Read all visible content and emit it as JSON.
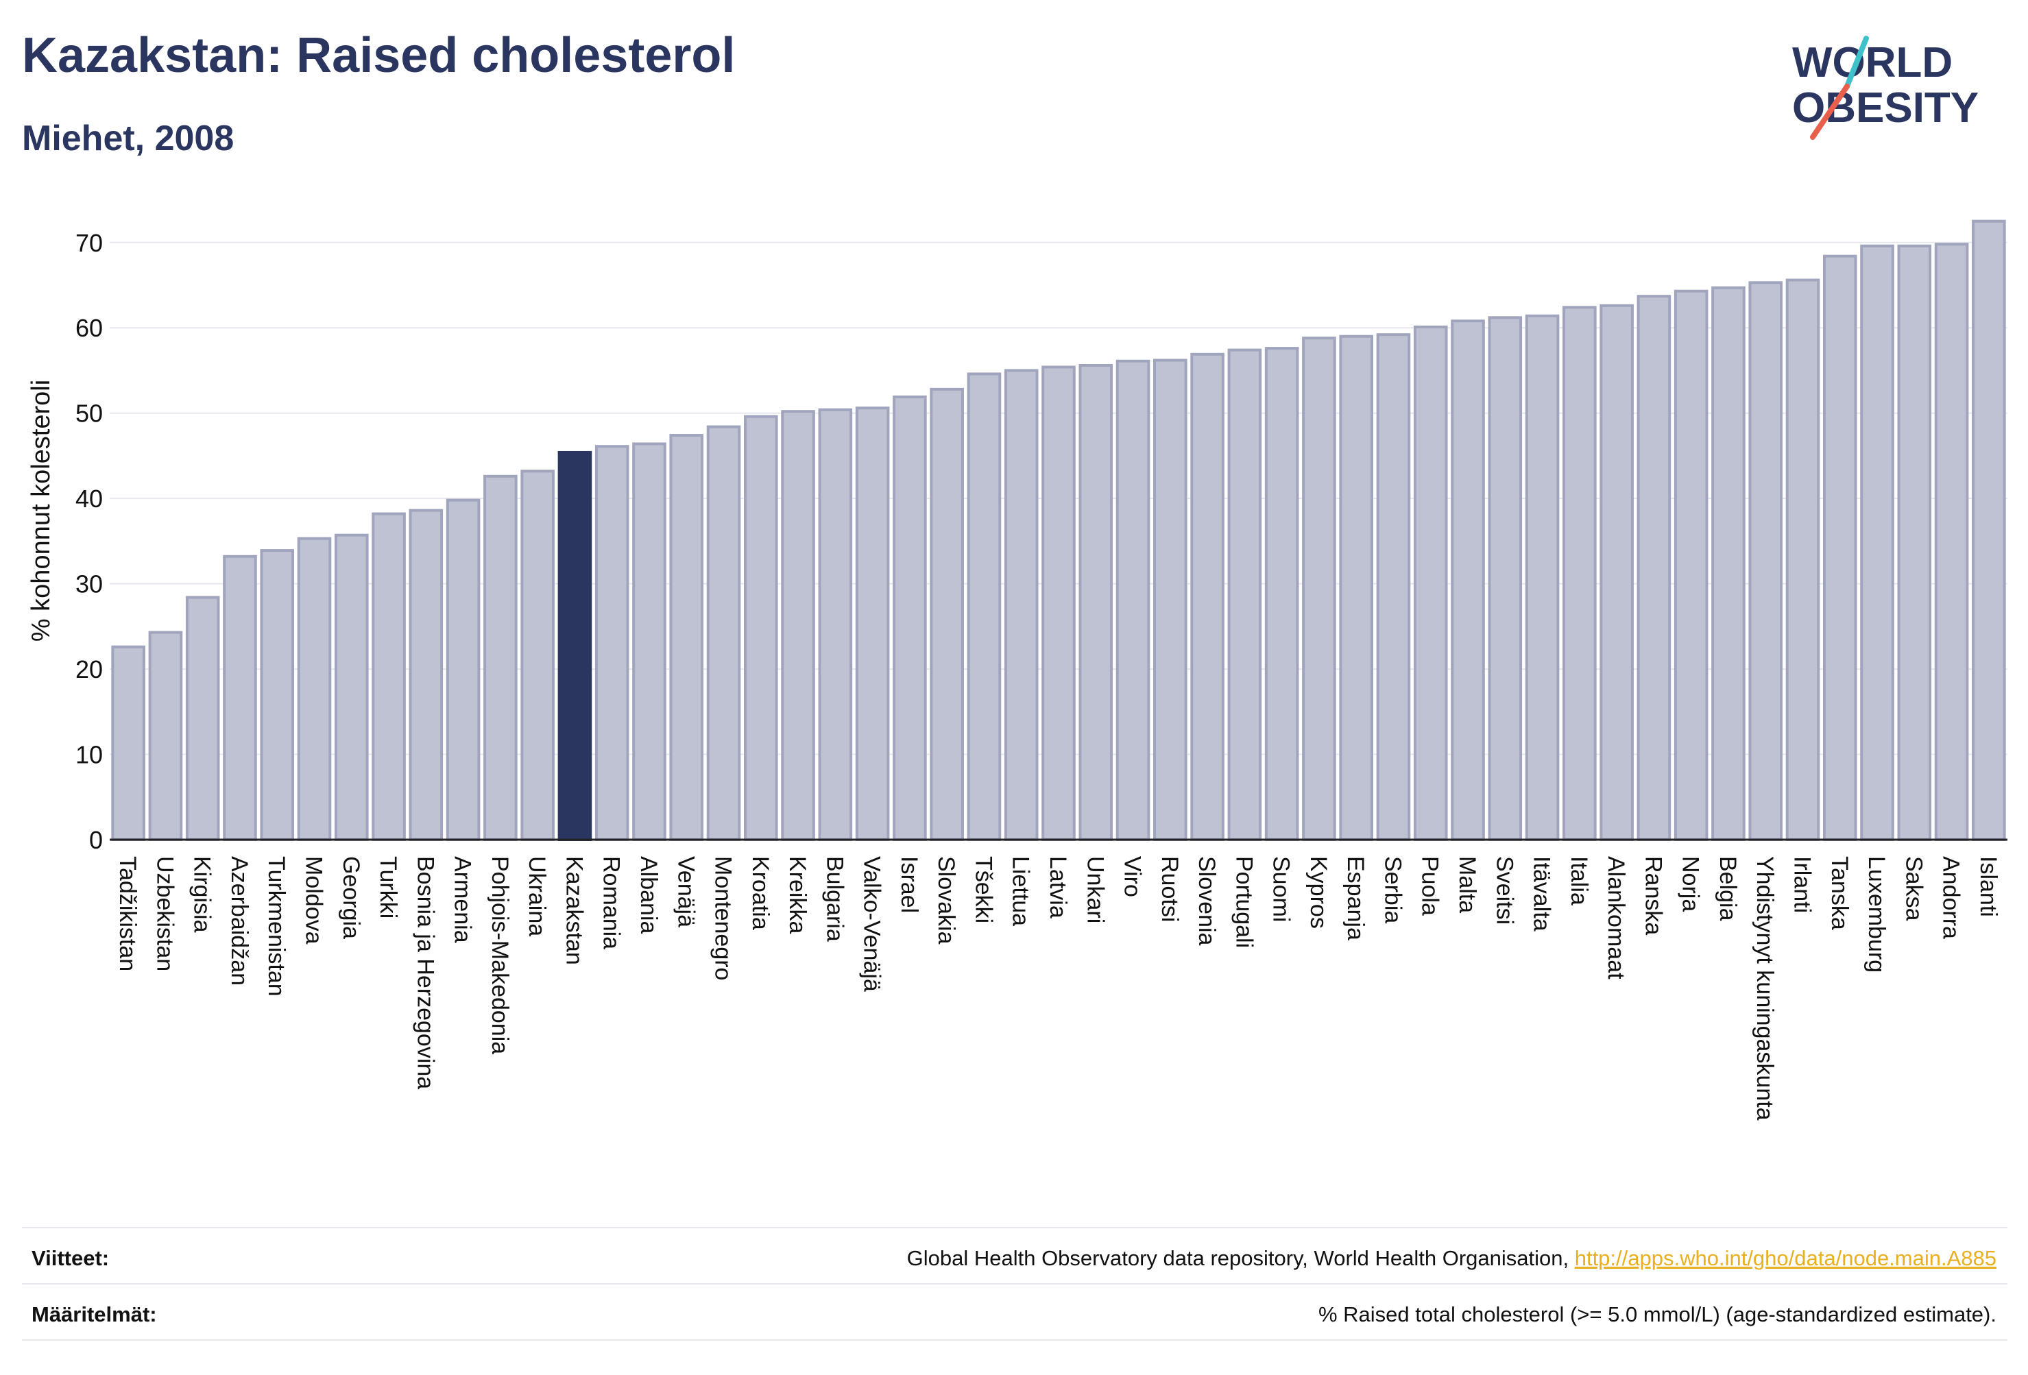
{
  "header": {
    "title": "Kazakstan: Raised cholesterol",
    "subtitle": "Miehet, 2008"
  },
  "logo": {
    "line1": "WORLD",
    "line2": "OBESITY",
    "slash_color_top": "#3fc1c9",
    "slash_color_bottom": "#e8604c"
  },
  "footer": {
    "sources_label": "Viitteet:",
    "sources_text": "Global Health Observatory data repository, World Health Organisation, ",
    "sources_link": "http://apps.who.int/gho/data/node.main.A885",
    "definitions_label": "Määritelmät:",
    "definitions_text": "% Raised total cholesterol (>= 5.0 mmol/L) (age-standardized estimate)."
  },
  "colors": {
    "bar_fill": "#bec2d2",
    "bar_stroke": "#a0a5bd",
    "highlight": "#2a3560",
    "grid": "#e6e8ee",
    "axis_text": "#111111"
  },
  "chart_data": {
    "type": "bar",
    "ylabel": "% kohonnut kolesteroli",
    "ylim": [
      0,
      74
    ],
    "yticks": [
      0,
      10,
      20,
      30,
      40,
      50,
      60,
      70
    ],
    "grid": true,
    "highlight_category": "Kazakstan",
    "categories": [
      "Tadžikistan",
      "Uzbekistan",
      "Kirgisia",
      "Azerbaidžan",
      "Turkmenistan",
      "Moldova",
      "Georgia",
      "Turkki",
      "Bosnia ja Herzegovina",
      "Armenia",
      "Pohjois-Makedonia",
      "Ukraina",
      "Kazakstan",
      "Romania",
      "Albania",
      "Venäjä",
      "Montenegro",
      "Kroatia",
      "Kreikka",
      "Bulgaria",
      "Valko-Venäjä",
      "Israel",
      "Slovakia",
      "Tšekki",
      "Liettua",
      "Latvia",
      "Unkari",
      "Viro",
      "Ruotsi",
      "Slovenia",
      "Portugali",
      "Suomi",
      "Kypros",
      "Espanja",
      "Serbia",
      "Puola",
      "Malta",
      "Sveitsi",
      "Itävalta",
      "Italia",
      "Alankomaat",
      "Ranska",
      "Norja",
      "Belgia",
      "Yhdistynyt kuningaskunta",
      "Irlanti",
      "Tanska",
      "Luxemburg",
      "Saksa",
      "Andorra",
      "Islanti"
    ],
    "values": [
      22.6,
      24.3,
      28.4,
      33.2,
      33.9,
      35.3,
      35.7,
      38.2,
      38.6,
      39.8,
      42.6,
      43.2,
      45.4,
      46.1,
      46.4,
      47.4,
      48.4,
      49.6,
      50.2,
      50.4,
      50.6,
      51.9,
      52.8,
      54.6,
      55.0,
      55.4,
      55.6,
      56.1,
      56.2,
      56.9,
      57.4,
      57.6,
      58.8,
      59.0,
      59.2,
      60.1,
      60.8,
      61.2,
      61.4,
      62.4,
      62.6,
      63.7,
      64.3,
      64.7,
      65.3,
      65.6,
      68.4,
      69.6,
      69.6,
      69.8,
      72.5
    ]
  }
}
